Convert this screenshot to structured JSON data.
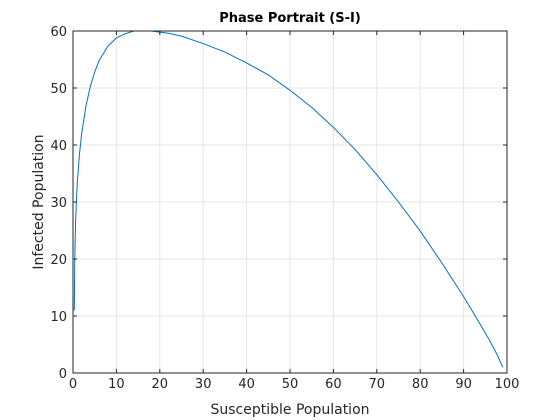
{
  "chart_data": {
    "type": "line",
    "title": "Phase Portrait (S-I)",
    "xlabel": "Susceptible Population",
    "ylabel": "Infected Population",
    "xlim": [
      0,
      100
    ],
    "ylim": [
      0,
      60
    ],
    "xticks": [
      0,
      10,
      20,
      30,
      40,
      50,
      60,
      70,
      80,
      90,
      100
    ],
    "yticks": [
      0,
      10,
      20,
      30,
      40,
      50,
      60
    ],
    "grid": true,
    "box": true,
    "series": [
      {
        "color": "#0072bd",
        "x": [
          99,
          98,
          96,
          93,
          90,
          85,
          80,
          75,
          70,
          65,
          60,
          55,
          50,
          45,
          40,
          35,
          30,
          25,
          22,
          20,
          18,
          16,
          14,
          12,
          10,
          8,
          6,
          5,
          4,
          3,
          2,
          1.5,
          1,
          0.8,
          0.6,
          0.5,
          0.4,
          0.3
        ],
        "y": [
          1,
          2.8,
          5.7,
          9.6,
          13.4,
          19.3,
          24.9,
          30,
          34.8,
          39.2,
          43.1,
          46.6,
          49.6,
          52.3,
          54.4,
          56.3,
          57.8,
          59.1,
          59.6,
          59.8,
          60,
          60,
          60,
          59.5,
          58.8,
          57.3,
          54.8,
          52.8,
          50.3,
          46.9,
          42,
          38.5,
          33.5,
          30.5,
          26.5,
          23.5,
          19.5,
          11
        ]
      }
    ]
  }
}
